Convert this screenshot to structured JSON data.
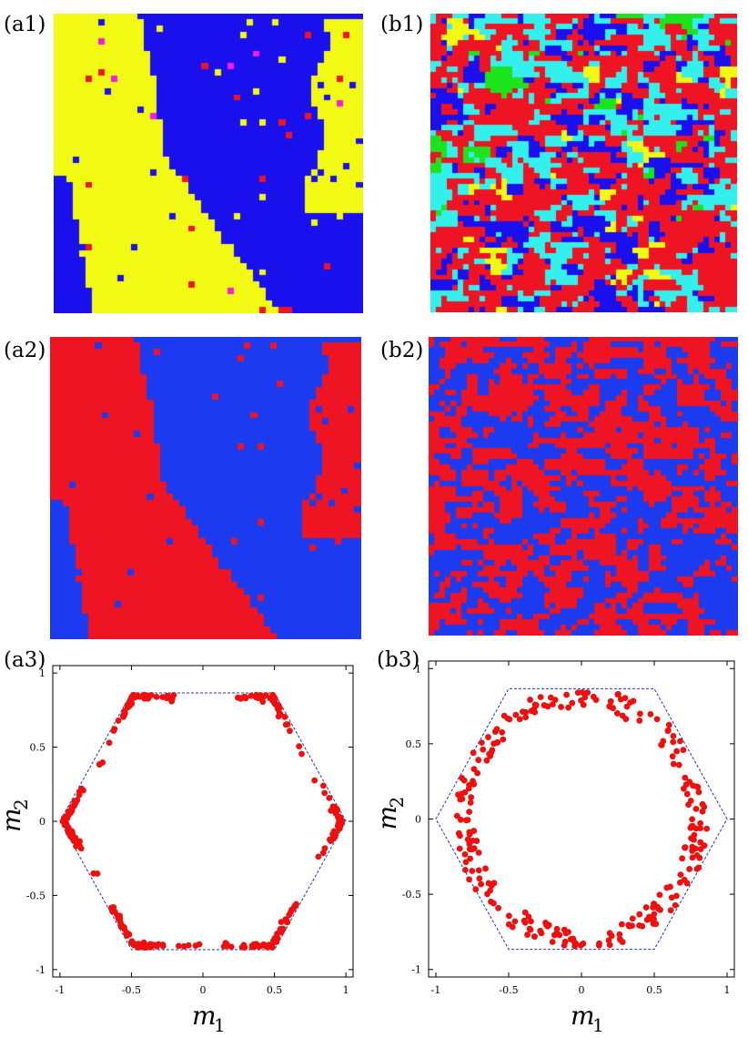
{
  "panels": {
    "a1": {
      "label": "(a1)",
      "colors": [
        "#1a10ee",
        "#f2fa14",
        "#ee1423",
        "#f21de0"
      ]
    },
    "b1": {
      "label": "(b1)",
      "colors": [
        "#ee1423",
        "#1a10ee",
        "#34f0ec",
        "#f2fa14",
        "#1ce41c"
      ]
    },
    "a2": {
      "label": "(a2)",
      "colors": [
        "#1c3bf0",
        "#ee1423"
      ]
    },
    "b2": {
      "label": "(b2)",
      "colors": [
        "#1c3bf0",
        "#ee1423"
      ]
    },
    "a3": {
      "label": "(a3)"
    },
    "b3": {
      "label": "(b3)"
    }
  },
  "colors": {
    "point": "#ee0f0f",
    "hexagon": "#1e33c8"
  },
  "axes": {
    "xlabel": "m",
    "xsub": "1",
    "ylabel": "m",
    "ysub": "2",
    "xticks": [
      "-1",
      "-0.5",
      "0",
      "0.5",
      "1"
    ],
    "yticks": [
      "1",
      "0.5",
      "0",
      "-0.5",
      "-1"
    ]
  },
  "chart_data": [
    {
      "type": "scatter",
      "title": "",
      "xlim": [
        -1.05,
        1.05
      ],
      "ylim": [
        -1.05,
        1.05
      ],
      "hexagon": [
        [
          1,
          0
        ],
        [
          0.5,
          0.866
        ],
        [
          -0.5,
          0.866
        ],
        [
          -1,
          0
        ],
        [
          -0.5,
          -0.866
        ],
        [
          0.5,
          -0.866
        ]
      ],
      "description_of_points": "clustered near the six hexagon corners",
      "clusters": [
        {
          "center": [
            0.95,
            0.0
          ],
          "count": 45
        },
        {
          "center": [
            -0.94,
            0.0
          ],
          "count": 50
        },
        {
          "center": [
            0.45,
            0.85
          ],
          "count": 45
        },
        {
          "center": [
            -0.47,
            0.85
          ],
          "count": 45
        },
        {
          "center": [
            0.47,
            -0.84
          ],
          "count": 50
        },
        {
          "center": [
            -0.47,
            -0.84
          ],
          "count": 50
        }
      ]
    },
    {
      "type": "scatter",
      "title": "",
      "xlim": [
        -1.05,
        1.05
      ],
      "ylim": [
        -1.05,
        1.05
      ],
      "hexagon": [
        [
          1,
          0
        ],
        [
          0.5,
          0.866
        ],
        [
          -0.5,
          0.866
        ],
        [
          -1,
          0
        ],
        [
          -0.5,
          -0.866
        ],
        [
          0.5,
          -0.866
        ]
      ],
      "description_of_points": "spread along a ring of radius ~0.8 inside the hexagon",
      "ring_radius": 0.82,
      "count": 260
    }
  ]
}
